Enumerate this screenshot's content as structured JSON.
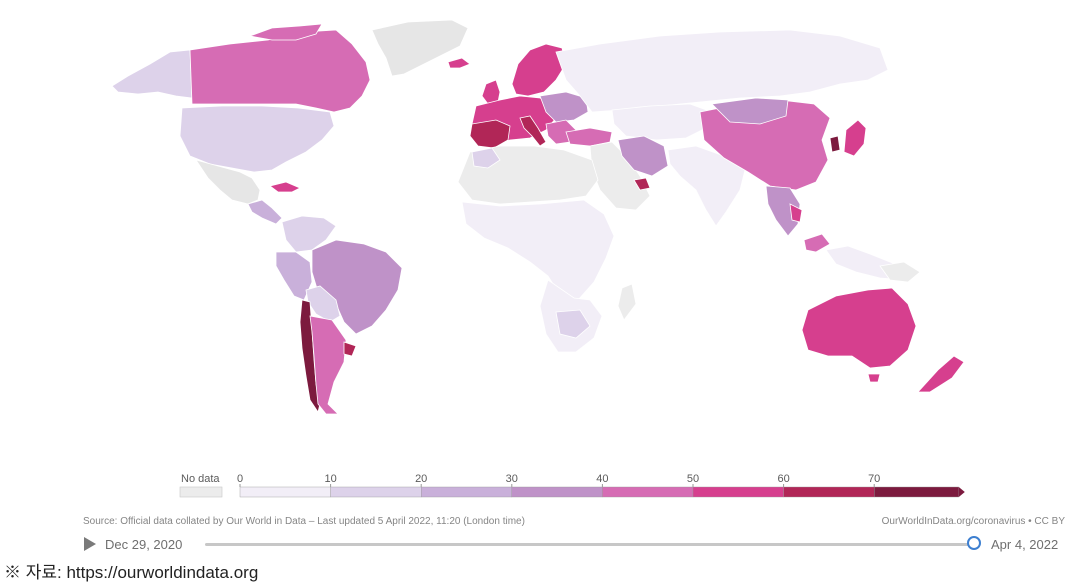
{
  "legend": {
    "no_data_label": "No data",
    "ticks": [
      "0",
      "10",
      "20",
      "30",
      "40",
      "50",
      "60",
      "70"
    ],
    "no_data_color": "#ececec",
    "bin_colors": [
      "#f2eef7",
      "#ddd2ea",
      "#c9b0da",
      "#bf92c8",
      "#d66cb4",
      "#d63f8e",
      "#b12657",
      "#7c1a3e"
    ]
  },
  "map_colors": {
    "no_data": "#e6e6e6",
    "ocean": "#ffffff",
    "border": "#ffffff"
  },
  "footer": {
    "source": "Source: Official data collated by Our World in Data – Last updated 5 April 2022, 11:20 (London time)",
    "credit": "OurWorldInData.org/coronavirus • CC BY"
  },
  "timeline": {
    "start_date": "Dec 29, 2020",
    "end_date": "Apr 4, 2022",
    "position": 1.0
  },
  "caption": "※ 자료: https://ourworldindata.org"
}
